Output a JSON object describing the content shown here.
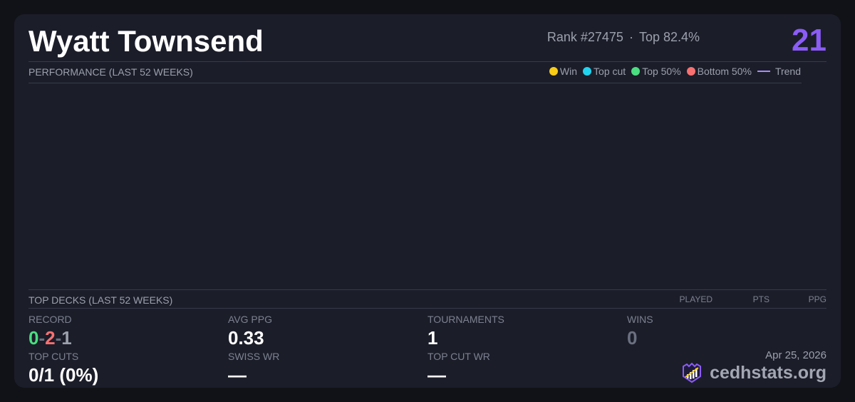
{
  "player": {
    "name": "Wyatt Townsend",
    "rank": "Rank #27475",
    "top": "Top 82.4%",
    "score": "21"
  },
  "performance": {
    "title": "PERFORMANCE (LAST 52 WEEKS)",
    "legend": [
      {
        "label": "Win",
        "color": "#facc15"
      },
      {
        "label": "Top cut",
        "color": "#22d3ee"
      },
      {
        "label": "Top 50%",
        "color": "#4ade80"
      },
      {
        "label": "Bottom 50%",
        "color": "#f87171"
      },
      {
        "label": "Trend",
        "color": "#a78bfa"
      }
    ]
  },
  "top_decks": {
    "title": "TOP DECKS (LAST 52 WEEKS)",
    "columns": [
      "PLAYED",
      "PTS",
      "PPG"
    ]
  },
  "stats": {
    "record": {
      "label": "RECORD",
      "wins": "0",
      "losses": "2",
      "draws": "1",
      "sep": "-"
    },
    "avg_ppg": {
      "label": "AVG PPG",
      "value": "0.33"
    },
    "tournaments": {
      "label": "TOURNAMENTS",
      "value": "1"
    },
    "wins": {
      "label": "WINS",
      "value": "0"
    },
    "top_cuts": {
      "label": "TOP CUTS",
      "value": "0/1 (0%)"
    },
    "swiss_wr": {
      "label": "SWISS WR",
      "value": "—"
    },
    "top_cut_wr": {
      "label": "TOP CUT WR",
      "value": "—"
    }
  },
  "footer": {
    "date": "Apr 25, 2026",
    "brand": "cedhstats.org"
  }
}
